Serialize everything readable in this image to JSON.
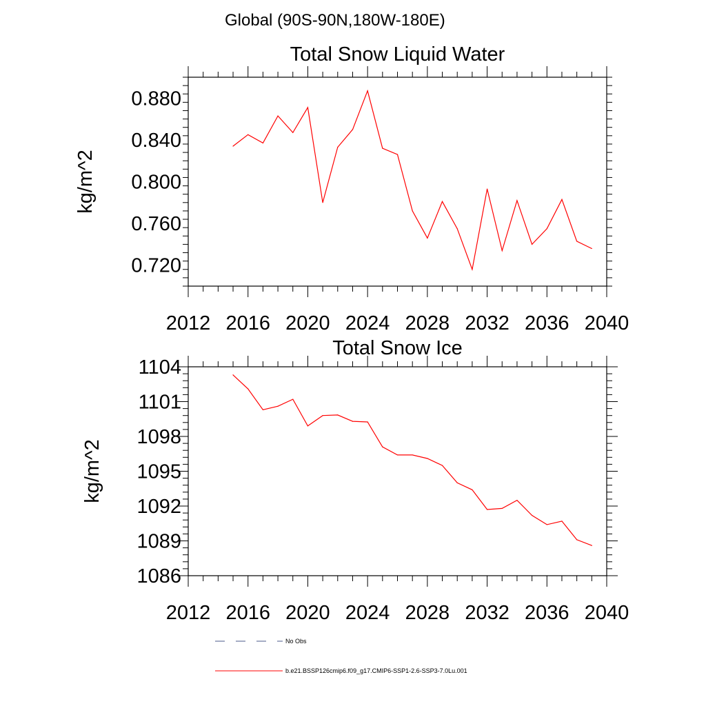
{
  "figure_title": "Global (90S-90N,180W-180E)",
  "chart_data": [
    {
      "type": "line",
      "title": "Total Snow Liquid Water",
      "xlabel": "",
      "ylabel": "kg/m^2",
      "xlim": [
        2012,
        2040
      ],
      "ylim": [
        0.7,
        0.9
      ],
      "x_ticks": [
        "2012",
        "2016",
        "2020",
        "2024",
        "2028",
        "2032",
        "2036",
        "2040"
      ],
      "y_ticks": [
        "0.720",
        "0.760",
        "0.800",
        "0.840",
        "0.880"
      ],
      "series": [
        {
          "name": "b.e21.BSSP126cmip6.f09_g17.CMIP6-SSP1-2.6-SSP3-7.0Lu.001",
          "color": "#ff0000",
          "x": [
            2015,
            2016,
            2017,
            2018,
            2019,
            2020,
            2021,
            2022,
            2023,
            2024,
            2025,
            2026,
            2027,
            2028,
            2029,
            2030,
            2031,
            2032,
            2033,
            2034,
            2035,
            2036,
            2037,
            2038,
            2039
          ],
          "y": [
            0.834,
            0.845,
            0.837,
            0.863,
            0.847,
            0.871,
            0.78,
            0.833,
            0.85,
            0.887,
            0.832,
            0.826,
            0.772,
            0.746,
            0.781,
            0.755,
            0.716,
            0.793,
            0.734,
            0.782,
            0.74,
            0.755,
            0.783,
            0.743,
            0.736
          ]
        }
      ]
    },
    {
      "type": "line",
      "title": "Total Snow Ice",
      "xlabel": "",
      "ylabel": "kg/m^2",
      "xlim": [
        2012,
        2040
      ],
      "ylim": [
        1086,
        1104
      ],
      "x_ticks": [
        "2012",
        "2016",
        "2020",
        "2024",
        "2028",
        "2032",
        "2036",
        "2040"
      ],
      "y_ticks": [
        "1086",
        "1089",
        "1092",
        "1095",
        "1098",
        "1101",
        "1104"
      ],
      "series": [
        {
          "name": "b.e21.BSSP126cmip6.f09_g17.CMIP6-SSP1-2.6-SSP3-7.0Lu.001",
          "color": "#ff0000",
          "x": [
            2015,
            2016,
            2017,
            2018,
            2019,
            2020,
            2021,
            2022,
            2023,
            2024,
            2025,
            2026,
            2027,
            2028,
            2029,
            2030,
            2031,
            2032,
            2033,
            2034,
            2035,
            2036,
            2037,
            2038,
            2039
          ],
          "y": [
            1103.3,
            1102.1,
            1100.3,
            1100.6,
            1101.2,
            1098.9,
            1099.8,
            1099.85,
            1099.3,
            1099.25,
            1097.1,
            1096.4,
            1096.4,
            1096.1,
            1095.5,
            1094.0,
            1093.4,
            1091.7,
            1091.8,
            1092.5,
            1091.2,
            1090.4,
            1090.7,
            1089.1,
            1088.6
          ]
        }
      ]
    }
  ],
  "legend": {
    "placement": "bottom",
    "items": [
      {
        "label": "No Obs",
        "color": "#4a5a8a",
        "style": "dashed"
      },
      {
        "label": "b.e21.BSSP126cmip6.f09_g17.CMIP6-SSP1-2.6-SSP3-7.0Lu.001",
        "color": "#ff0000",
        "style": "solid"
      }
    ]
  }
}
